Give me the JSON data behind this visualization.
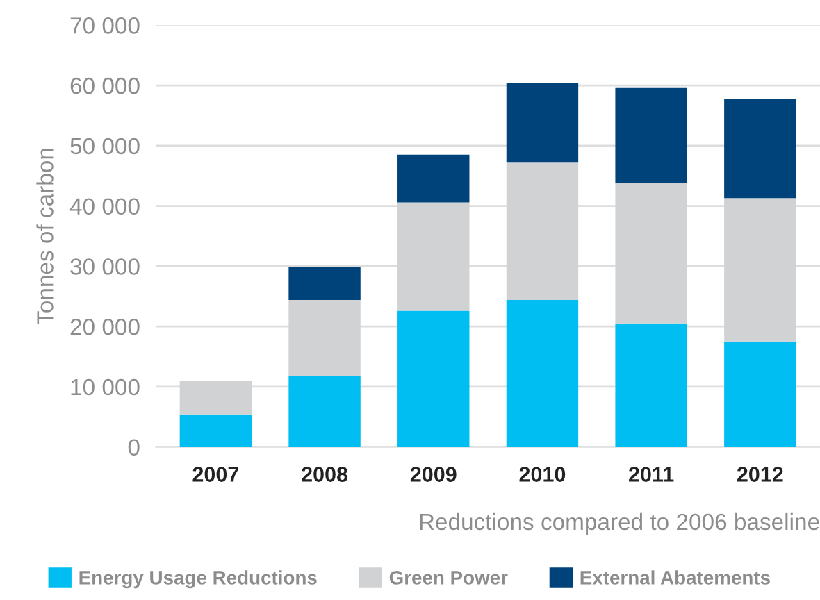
{
  "chart_data": {
    "type": "bar",
    "stacked": true,
    "xlabel": "Reductions compared to 2006 baseline",
    "ylabel": "Tonnes of carbon",
    "categories": [
      "2007",
      "2008",
      "2009",
      "2010",
      "2011",
      "2012"
    ],
    "series": [
      {
        "name": "Energy Usage Reductions",
        "color": "#00bdf2",
        "values": [
          5400,
          11800,
          22600,
          24400,
          20500,
          17500
        ]
      },
      {
        "name": "Green Power",
        "color": "#d1d2d4",
        "values": [
          5600,
          12600,
          18000,
          22900,
          23300,
          23800
        ]
      },
      {
        "name": "External Abatements",
        "color": "#00427a",
        "values": [
          null,
          5400,
          7900,
          13100,
          15900,
          16500
        ]
      }
    ],
    "ylim": [
      0,
      70000
    ],
    "yticks": [
      {
        "value": 0,
        "label": "0"
      },
      {
        "value": 10000,
        "label": "10 000"
      },
      {
        "value": 20000,
        "label": "20 000"
      },
      {
        "value": 30000,
        "label": "30 000"
      },
      {
        "value": 40000,
        "label": "40 000"
      },
      {
        "value": 50000,
        "label": "50 000"
      },
      {
        "value": 60000,
        "label": "60 000"
      },
      {
        "value": 70000,
        "label": "70 000"
      }
    ],
    "grid": "y",
    "legend": "bottom"
  }
}
